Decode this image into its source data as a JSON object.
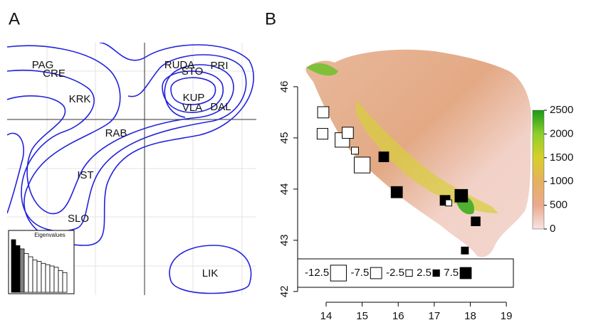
{
  "chart_data": [
    {
      "type": "ordination",
      "panel_label": "A",
      "labels": [
        "PAG",
        "CRE",
        "KRK",
        "RAB",
        "IST",
        "SLO",
        "LIK",
        "RUDA",
        "STO",
        "PRI",
        "KUP",
        "VLA",
        "DAL"
      ],
      "inset": {
        "title": "Eigenvalues",
        "values": [
          80,
          71,
          66,
          59,
          54,
          49,
          47,
          44,
          42,
          40,
          38,
          33,
          30
        ],
        "colors": [
          "#000000",
          "#000000",
          "#808080",
          "#ffffff",
          "#ffffff",
          "#ffffff",
          "#ffffff",
          "#ffffff",
          "#ffffff",
          "#ffffff",
          "#ffffff",
          "#ffffff",
          "#ffffff"
        ]
      }
    },
    {
      "type": "bubble",
      "panel_label": "B",
      "x": [
        13.92,
        13.9,
        14.45,
        14.6,
        14.8,
        15.0,
        15.6,
        15.96,
        17.3,
        17.4,
        17.75,
        18.15,
        17.85
      ],
      "y": [
        45.5,
        45.08,
        44.96,
        45.1,
        44.75,
        44.47,
        44.63,
        43.94,
        43.78,
        43.73,
        43.87,
        43.37,
        42.8
      ],
      "values": [
        -7.5,
        -7,
        -11,
        -7.5,
        -3,
        -12.5,
        6,
        7.5,
        6,
        -2,
        9,
        5,
        3
      ],
      "xlim": [
        13.21,
        19.67
      ],
      "ylim": [
        41.79,
        46.86
      ],
      "xticks": [
        14,
        15,
        16,
        17,
        18,
        19
      ],
      "yticks": [
        42,
        43,
        44,
        45,
        46
      ],
      "legend_values": [
        -12.5,
        -7.5,
        -2.5,
        2.5,
        7.5
      ],
      "colorbar": {
        "lim": [
          0,
          2500
        ],
        "ticks": [
          0,
          500,
          1000,
          1500,
          2000,
          2500
        ]
      }
    }
  ]
}
